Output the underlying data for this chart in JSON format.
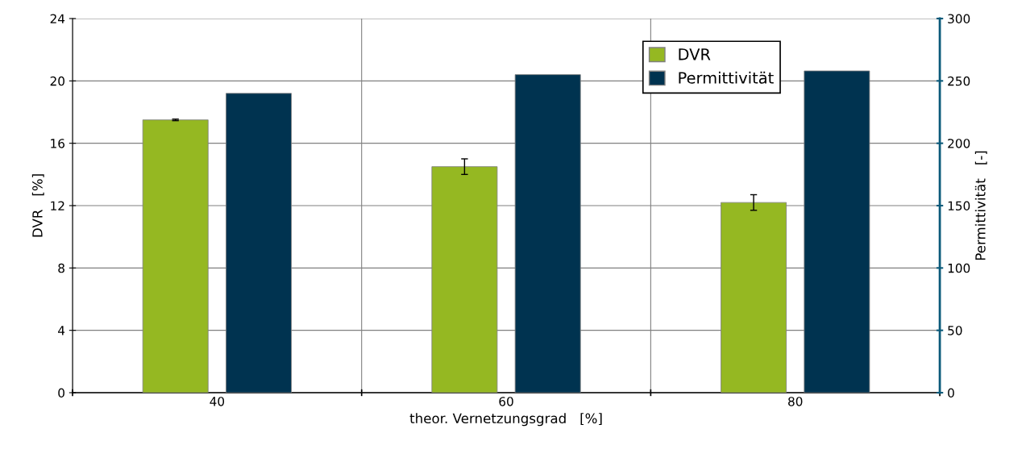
{
  "chart_data": {
    "type": "bar",
    "categories": [
      "40",
      "60",
      "80"
    ],
    "xlabel": "theor. Vernetzungsgrad   [%]",
    "ylabel": "DVR   [%]",
    "y2label": "Permittivität   [-]",
    "series": [
      {
        "name": "DVR",
        "color": "#95b822",
        "values": [
          17.5,
          14.5,
          12.2
        ],
        "errors": [
          0.05,
          0.5,
          0.5
        ]
      },
      {
        "name": "Permittivität",
        "color": "#003350",
        "values": [
          240,
          255,
          258
        ],
        "axis": "y2"
      }
    ],
    "ylim": [
      0,
      24
    ],
    "yticks": [
      0,
      4,
      8,
      12,
      16,
      20,
      24
    ],
    "y2lim": [
      0,
      300
    ],
    "y2ticks": [
      0,
      50,
      100,
      150,
      200,
      250,
      300
    ],
    "grid": true,
    "legend": "top right"
  }
}
